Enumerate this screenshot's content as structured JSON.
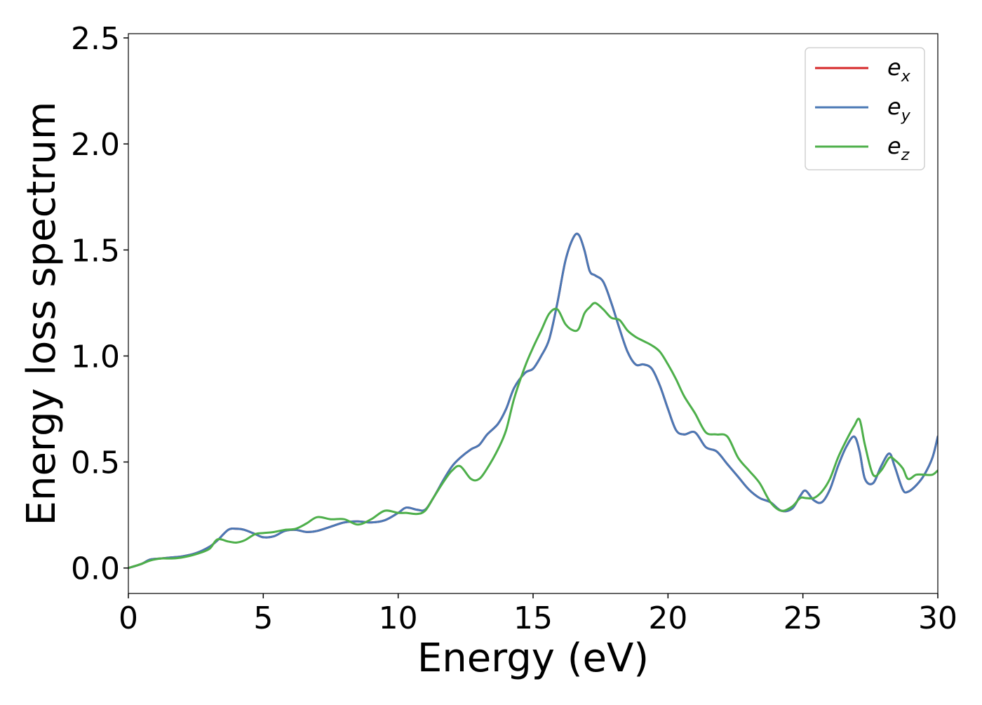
{
  "chart_data": {
    "type": "line",
    "title": "",
    "xlabel": "Energy (eV)",
    "ylabel": "Energy loss spectrum",
    "xlim": [
      0,
      30
    ],
    "ylim": [
      -0.12,
      2.52
    ],
    "xticks": [
      0,
      5,
      10,
      15,
      20,
      25,
      30
    ],
    "xtick_labels": [
      "0",
      "5",
      "10",
      "15",
      "20",
      "25",
      "30"
    ],
    "yticks": [
      0.0,
      0.5,
      1.0,
      1.5,
      2.0,
      2.5
    ],
    "ytick_labels": [
      "0.0",
      "0.5",
      "1.0",
      "1.5",
      "2.0",
      "2.5"
    ],
    "grid": false,
    "legend_position": "top-right",
    "series": [
      {
        "name": "e_x",
        "label_base": "e",
        "label_sub": "x",
        "color": "#d62728",
        "x": [
          0,
          0.5,
          0.8,
          1.2,
          1.6,
          2.0,
          2.5,
          3.0,
          3.3,
          3.7,
          4.0,
          4.3,
          4.7,
          5.0,
          5.4,
          5.8,
          6.2,
          6.6,
          7.0,
          7.5,
          8.0,
          8.5,
          9.0,
          9.5,
          10.0,
          10.3,
          10.7,
          11.0,
          11.3,
          11.7,
          12.0,
          12.3,
          12.7,
          13.0,
          13.3,
          13.7,
          14.0,
          14.3,
          14.7,
          15.0,
          15.3,
          15.6,
          15.9,
          16.2,
          16.5,
          16.7,
          16.9,
          17.1,
          17.3,
          17.6,
          17.9,
          18.2,
          18.5,
          18.8,
          19.1,
          19.4,
          19.7,
          20.0,
          20.3,
          20.6,
          21.0,
          21.4,
          21.8,
          22.2,
          22.6,
          23.0,
          23.4,
          23.8,
          24.2,
          24.6,
          24.9,
          25.1,
          25.4,
          25.7,
          26.0,
          26.3,
          26.6,
          26.9,
          27.1,
          27.3,
          27.6,
          27.9,
          28.2,
          28.4,
          28.7,
          28.9,
          29.2,
          29.5,
          29.8,
          30.0
        ],
        "y": [
          0.0,
          0.02,
          0.04,
          0.045,
          0.05,
          0.055,
          0.07,
          0.1,
          0.13,
          0.18,
          0.185,
          0.18,
          0.16,
          0.145,
          0.15,
          0.175,
          0.18,
          0.17,
          0.175,
          0.195,
          0.215,
          0.22,
          0.215,
          0.225,
          0.26,
          0.285,
          0.275,
          0.275,
          0.33,
          0.42,
          0.48,
          0.52,
          0.56,
          0.58,
          0.63,
          0.68,
          0.75,
          0.85,
          0.92,
          0.94,
          1.0,
          1.08,
          1.25,
          1.45,
          1.56,
          1.57,
          1.5,
          1.4,
          1.38,
          1.35,
          1.25,
          1.13,
          1.02,
          0.96,
          0.96,
          0.94,
          0.86,
          0.75,
          0.65,
          0.63,
          0.64,
          0.57,
          0.55,
          0.49,
          0.43,
          0.37,
          0.33,
          0.31,
          0.27,
          0.28,
          0.34,
          0.365,
          0.32,
          0.31,
          0.37,
          0.48,
          0.57,
          0.62,
          0.55,
          0.42,
          0.4,
          0.48,
          0.54,
          0.48,
          0.37,
          0.36,
          0.39,
          0.44,
          0.52,
          0.62
        ]
      },
      {
        "name": "e_y",
        "label_base": "e",
        "label_sub": "y",
        "color": "#4a78b5",
        "x": [
          0,
          0.5,
          0.8,
          1.2,
          1.6,
          2.0,
          2.5,
          3.0,
          3.3,
          3.7,
          4.0,
          4.3,
          4.7,
          5.0,
          5.4,
          5.8,
          6.2,
          6.6,
          7.0,
          7.5,
          8.0,
          8.5,
          9.0,
          9.5,
          10.0,
          10.3,
          10.7,
          11.0,
          11.3,
          11.7,
          12.0,
          12.3,
          12.7,
          13.0,
          13.3,
          13.7,
          14.0,
          14.3,
          14.7,
          15.0,
          15.3,
          15.6,
          15.9,
          16.2,
          16.5,
          16.7,
          16.9,
          17.1,
          17.3,
          17.6,
          17.9,
          18.2,
          18.5,
          18.8,
          19.1,
          19.4,
          19.7,
          20.0,
          20.3,
          20.6,
          21.0,
          21.4,
          21.8,
          22.2,
          22.6,
          23.0,
          23.4,
          23.8,
          24.2,
          24.6,
          24.9,
          25.1,
          25.4,
          25.7,
          26.0,
          26.3,
          26.6,
          26.9,
          27.1,
          27.3,
          27.6,
          27.9,
          28.2,
          28.4,
          28.7,
          28.9,
          29.2,
          29.5,
          29.8,
          30.0
        ],
        "y": [
          0.0,
          0.02,
          0.04,
          0.045,
          0.05,
          0.055,
          0.07,
          0.1,
          0.13,
          0.18,
          0.185,
          0.18,
          0.16,
          0.145,
          0.15,
          0.175,
          0.18,
          0.17,
          0.175,
          0.195,
          0.215,
          0.22,
          0.215,
          0.225,
          0.26,
          0.285,
          0.275,
          0.275,
          0.33,
          0.42,
          0.48,
          0.52,
          0.56,
          0.58,
          0.63,
          0.68,
          0.75,
          0.85,
          0.92,
          0.94,
          1.0,
          1.08,
          1.25,
          1.45,
          1.56,
          1.57,
          1.5,
          1.4,
          1.38,
          1.35,
          1.25,
          1.13,
          1.02,
          0.96,
          0.96,
          0.94,
          0.86,
          0.75,
          0.65,
          0.63,
          0.64,
          0.57,
          0.55,
          0.49,
          0.43,
          0.37,
          0.33,
          0.31,
          0.27,
          0.28,
          0.34,
          0.365,
          0.32,
          0.31,
          0.37,
          0.48,
          0.57,
          0.62,
          0.55,
          0.42,
          0.4,
          0.48,
          0.54,
          0.48,
          0.37,
          0.36,
          0.39,
          0.44,
          0.52,
          0.62
        ]
      },
      {
        "name": "e_z",
        "label_base": "e",
        "label_sub": "z",
        "color": "#4daf4a",
        "x": [
          0,
          0.5,
          0.8,
          1.2,
          1.6,
          2.0,
          2.5,
          3.0,
          3.3,
          3.7,
          4.0,
          4.3,
          4.7,
          5.0,
          5.4,
          5.8,
          6.2,
          6.6,
          7.0,
          7.5,
          8.0,
          8.5,
          9.0,
          9.5,
          10.0,
          10.3,
          10.7,
          11.0,
          11.3,
          11.7,
          12.0,
          12.3,
          12.7,
          13.0,
          13.3,
          13.7,
          14.0,
          14.3,
          14.7,
          15.0,
          15.3,
          15.6,
          15.9,
          16.2,
          16.5,
          16.7,
          16.9,
          17.1,
          17.3,
          17.6,
          17.9,
          18.2,
          18.5,
          18.8,
          19.1,
          19.4,
          19.7,
          20.0,
          20.3,
          20.6,
          21.0,
          21.4,
          21.8,
          22.2,
          22.6,
          23.0,
          23.4,
          23.8,
          24.2,
          24.6,
          24.9,
          25.1,
          25.4,
          25.7,
          26.0,
          26.3,
          26.6,
          26.9,
          27.1,
          27.3,
          27.6,
          27.9,
          28.2,
          28.4,
          28.7,
          28.9,
          29.2,
          29.5,
          29.8,
          30.0
        ],
        "y": [
          0.0,
          0.02,
          0.035,
          0.045,
          0.045,
          0.05,
          0.065,
          0.09,
          0.135,
          0.125,
          0.12,
          0.13,
          0.16,
          0.165,
          0.17,
          0.18,
          0.185,
          0.21,
          0.24,
          0.23,
          0.23,
          0.205,
          0.23,
          0.27,
          0.26,
          0.26,
          0.255,
          0.27,
          0.33,
          0.41,
          0.46,
          0.48,
          0.42,
          0.42,
          0.47,
          0.56,
          0.65,
          0.8,
          0.95,
          1.04,
          1.12,
          1.2,
          1.22,
          1.15,
          1.12,
          1.13,
          1.2,
          1.23,
          1.25,
          1.22,
          1.18,
          1.17,
          1.12,
          1.09,
          1.07,
          1.05,
          1.02,
          0.96,
          0.89,
          0.81,
          0.73,
          0.64,
          0.63,
          0.62,
          0.52,
          0.46,
          0.4,
          0.31,
          0.27,
          0.29,
          0.33,
          0.33,
          0.33,
          0.36,
          0.42,
          0.52,
          0.6,
          0.67,
          0.7,
          0.58,
          0.44,
          0.46,
          0.52,
          0.51,
          0.47,
          0.42,
          0.44,
          0.44,
          0.44,
          0.46
        ]
      }
    ]
  }
}
